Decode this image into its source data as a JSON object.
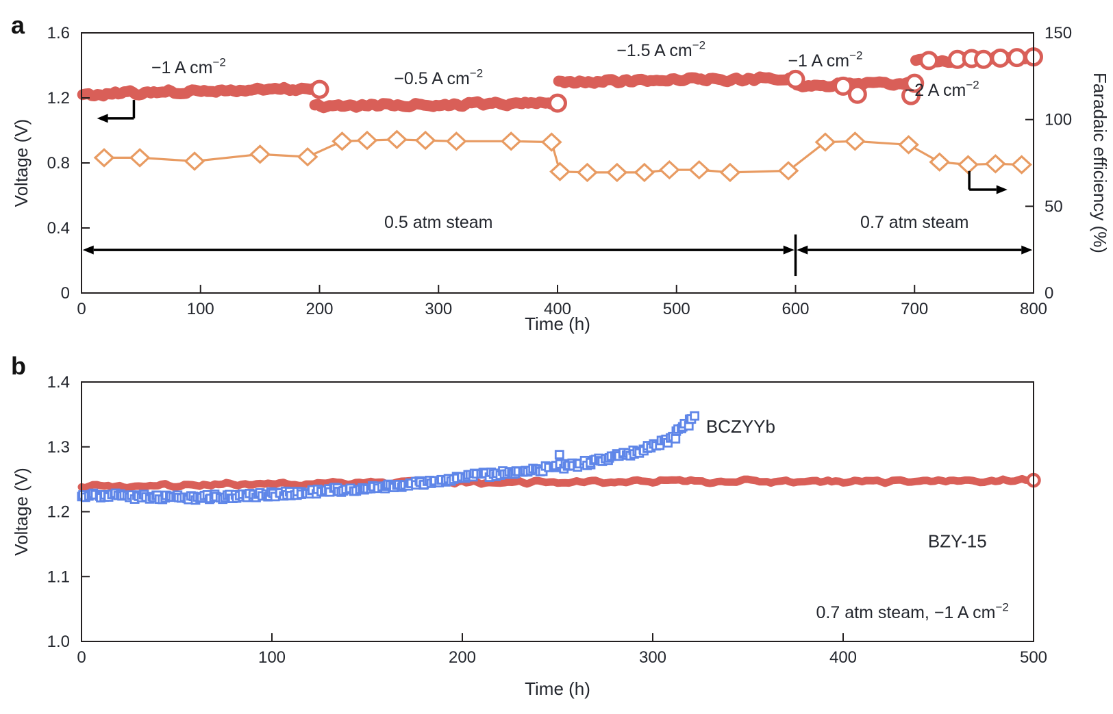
{
  "colors": {
    "red": "#D95F58",
    "orange": "#E89B62",
    "blue": "#5F86E8",
    "ink": "#231F20",
    "text": "#24272E"
  },
  "chart_data": [
    {
      "id": "panel-a",
      "type": "line",
      "panel_label": "a",
      "xlabel": "Time (h)",
      "xlim": [
        0,
        800
      ],
      "xticks": [
        "0",
        "100",
        "200",
        "300",
        "400",
        "500",
        "600",
        "700",
        "800"
      ],
      "left_axis": {
        "label": "Voltage (V)",
        "lim": [
          0,
          1.6
        ],
        "ticks": [
          "0",
          "0.4",
          "0.8",
          "1.2",
          "1.6"
        ]
      },
      "right_axis": {
        "label": "Faradaic efficiency (%)",
        "lim": [
          0,
          150
        ],
        "ticks": [
          "0",
          "50",
          "100",
          "150"
        ]
      },
      "grid": false,
      "voltage_series": {
        "name": "Voltage",
        "color_key": "red",
        "segments": [
          {
            "t": [
              1,
              200
            ],
            "v": [
              1.222,
              1.258
            ]
          },
          {
            "t": [
              196,
              400
            ],
            "v": [
              1.148,
              1.17
            ]
          },
          {
            "t": [
              401,
              600
            ],
            "v": [
              1.296,
              1.318
            ]
          },
          {
            "t": [
              601,
              700
            ],
            "v": [
              1.28,
              1.292
            ]
          },
          {
            "t": [
              701,
              800
            ],
            "v": [
              1.424,
              1.456
            ]
          }
        ],
        "end_markers": [
          [
            200,
            1.252
          ],
          [
            400,
            1.168
          ],
          [
            600,
            1.314
          ],
          [
            700,
            1.29
          ],
          [
            800,
            1.452
          ]
        ],
        "outlier_markers": [
          [
            640,
            1.272
          ],
          [
            652,
            1.222
          ],
          [
            697,
            1.214
          ],
          [
            712,
            1.43
          ],
          [
            736,
            1.437
          ],
          [
            748,
            1.442
          ],
          [
            758,
            1.437
          ],
          [
            772,
            1.445
          ],
          [
            786,
            1.448
          ]
        ]
      },
      "faradaic_series": {
        "name": "Faradaic efficiency",
        "color_key": "orange",
        "marker": "diamond",
        "points": [
          [
            19,
            78
          ],
          [
            49,
            78
          ],
          [
            95,
            76
          ],
          [
            150,
            80
          ],
          [
            190,
            78.5
          ],
          [
            219,
            87.5
          ],
          [
            240,
            88
          ],
          [
            265,
            88.5
          ],
          [
            289,
            88
          ],
          [
            315,
            87.5
          ],
          [
            361,
            87.5
          ],
          [
            395,
            87
          ],
          [
            402,
            70
          ],
          [
            425,
            69.5
          ],
          [
            450,
            69.5
          ],
          [
            473,
            69.5
          ],
          [
            494,
            71
          ],
          [
            519,
            71
          ],
          [
            545,
            69.5
          ],
          [
            594,
            70.5
          ],
          [
            625,
            87
          ],
          [
            650,
            87.5
          ],
          [
            695,
            85.5
          ],
          [
            721,
            75.5
          ],
          [
            745,
            74
          ],
          [
            768,
            74.5
          ],
          [
            790,
            74
          ]
        ]
      },
      "current_labels": [
        {
          "parts": [
            {
              "t": "−1 A cm"
            },
            {
              "t": "−2",
              "sup": true
            }
          ],
          "t": 90,
          "v": 1.352
        },
        {
          "parts": [
            {
              "t": "−0.5 A cm"
            },
            {
              "t": "−2",
              "sup": true
            }
          ],
          "t": 300,
          "v": 1.284
        },
        {
          "parts": [
            {
              "t": "−1.5 A cm"
            },
            {
              "t": "−2",
              "sup": true
            }
          ],
          "t": 487,
          "v": 1.457
        },
        {
          "parts": [
            {
              "t": "−1 A cm"
            },
            {
              "t": "−2",
              "sup": true
            }
          ],
          "t": 625,
          "v": 1.394
        },
        {
          "parts": [
            {
              "t": "−2 A cm"
            },
            {
              "t": "−2",
              "sup": true
            }
          ],
          "t": 723,
          "v": 1.213
        }
      ],
      "steam_regions": [
        {
          "label": "0.5 atm steam",
          "t0": 1,
          "t1": 599,
          "label_t": 300
        },
        {
          "label": "0.7 atm steam",
          "t0": 601,
          "t1": 799,
          "label_t": 700
        }
      ],
      "steam_arrow_v": 0.265,
      "steam_label_v": 0.4,
      "steam_divider": {
        "t": 600,
        "v0": 0.105,
        "v1": 0.36
      },
      "axis_pointers": [
        {
          "side": "left",
          "t": 44,
          "v_from": 1.187,
          "v_to": 1.074,
          "t_end": 13
        },
        {
          "side": "right",
          "t": 746,
          "v_from": 0.75,
          "v_to": 0.636,
          "t_end": 778
        }
      ]
    },
    {
      "id": "panel-b",
      "type": "scatter",
      "panel_label": "b",
      "xlabel": "Time (h)",
      "xlim": [
        0,
        500
      ],
      "xticks": [
        "0",
        "100",
        "200",
        "300",
        "400",
        "500"
      ],
      "left_axis": {
        "label": "Voltage (V)",
        "lim": [
          1.0,
          1.4
        ],
        "ticks": [
          "1.0",
          "1.1",
          "1.2",
          "1.3",
          "1.4"
        ]
      },
      "grid": false,
      "series": [
        {
          "name": "BZY-15",
          "color_key": "red",
          "marker": "band",
          "anchors": [
            [
              0,
              1.239
            ],
            [
              40,
              1.241
            ],
            [
              90,
              1.242
            ],
            [
              140,
              1.244
            ],
            [
              190,
              1.2455
            ],
            [
              240,
              1.246
            ],
            [
              300,
              1.2465
            ],
            [
              360,
              1.247
            ],
            [
              420,
              1.2465
            ],
            [
              470,
              1.247
            ],
            [
              500,
              1.2485
            ]
          ],
          "end_marker": [
            500,
            1.2485
          ],
          "label_pos": {
            "t": 460,
            "v": 1.145,
            "anchor": "middle"
          }
        },
        {
          "name": "BCZYYb",
          "color_key": "blue",
          "marker": "open-square",
          "anchors": [
            [
              0,
              1.226
            ],
            [
              20,
              1.2245
            ],
            [
              40,
              1.2215
            ],
            [
              60,
              1.2215
            ],
            [
              80,
              1.2235
            ],
            [
              100,
              1.2265
            ],
            [
              120,
              1.2305
            ],
            [
              140,
              1.2345
            ],
            [
              160,
              1.2395
            ],
            [
              180,
              1.2455
            ],
            [
              200,
              1.2525
            ],
            [
              220,
              1.2595
            ],
            [
              240,
              1.2655
            ],
            [
              255,
              1.2705
            ],
            [
              270,
              1.2775
            ],
            [
              285,
              1.2875
            ],
            [
              295,
              1.2955
            ],
            [
              305,
              1.3065
            ],
            [
              312,
              1.3175
            ],
            [
              318,
              1.3335
            ],
            [
              322,
              1.3475
            ]
          ],
          "outliers": [
            [
              251,
              1.288
            ]
          ],
          "label_pos": {
            "t": 328,
            "v": 1.322,
            "anchor": "start"
          }
        }
      ],
      "condition_label": {
        "parts": [
          {
            "t": "0.7 atm steam, −1 A cm"
          },
          {
            "t": "−2",
            "sup": true
          }
        ],
        "t": 487,
        "v": 1.036,
        "anchor": "end"
      }
    }
  ]
}
